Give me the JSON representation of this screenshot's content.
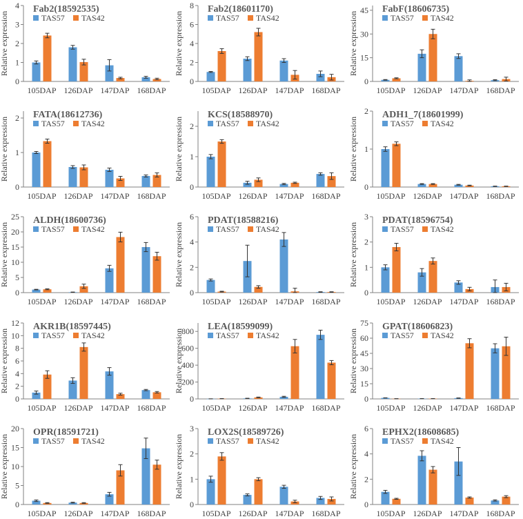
{
  "legend": [
    "TAS57",
    "TAS42"
  ],
  "colors": {
    "TAS57": "#5B9BD5",
    "TAS42": "#ED7D31",
    "axis": "#808080",
    "text": "#404040"
  },
  "ylabel": "Relative expression",
  "chart_data": [
    {
      "type": "bar",
      "title": "Fab2(18592535)",
      "categories": [
        "105DAP",
        "126DAP",
        "147DAP",
        "168DAP"
      ],
      "yticks": [
        "0",
        "1",
        "2",
        "3",
        "4"
      ],
      "ylim": [
        0,
        4
      ],
      "series": [
        {
          "name": "TAS57",
          "values": [
            1.0,
            1.8,
            0.85,
            0.22
          ],
          "err": [
            0.08,
            0.1,
            0.3,
            0.05
          ]
        },
        {
          "name": "TAS42",
          "values": [
            2.42,
            1.02,
            0.18,
            0.13
          ],
          "err": [
            0.12,
            0.15,
            0.04,
            0.04
          ]
        }
      ]
    },
    {
      "type": "bar",
      "title": "Fab2(18601170)",
      "categories": [
        "105DAP",
        "126DAP",
        "147DAP",
        "168DAP"
      ],
      "yticks": [
        "0",
        "2",
        "4",
        "6",
        "8"
      ],
      "ylim": [
        0,
        8
      ],
      "series": [
        {
          "name": "TAS57",
          "values": [
            1.0,
            2.4,
            2.2,
            0.8
          ],
          "err": [
            0.05,
            0.2,
            0.2,
            0.3
          ]
        },
        {
          "name": "TAS42",
          "values": [
            3.2,
            5.2,
            0.7,
            0.45
          ],
          "err": [
            0.25,
            0.4,
            0.45,
            0.3
          ]
        }
      ]
    },
    {
      "type": "bar",
      "title": "FabF(18606735)",
      "categories": [
        "105DAP",
        "126DAP",
        "147DAP",
        "168DAP"
      ],
      "yticks": [
        "0",
        "15",
        "30",
        "45"
      ],
      "ylim": [
        0,
        48
      ],
      "series": [
        {
          "name": "TAS57",
          "values": [
            1.0,
            17.5,
            16.0,
            0.8
          ],
          "err": [
            0.2,
            2.5,
            1.5,
            0.3
          ]
        },
        {
          "name": "TAS42",
          "values": [
            2.0,
            30.0,
            0.4,
            1.5
          ],
          "err": [
            0.3,
            3.0,
            0.6,
            1.2
          ]
        }
      ]
    },
    {
      "type": "bar",
      "title": "FATA(18612736)",
      "categories": [
        "105DAP",
        "126DAP",
        "147DAP",
        "168DAP"
      ],
      "yticks": [
        "0",
        "1",
        "2"
      ],
      "ylim": [
        0,
        2.2
      ],
      "series": [
        {
          "name": "TAS57",
          "values": [
            1.0,
            0.58,
            0.5,
            0.32
          ],
          "err": [
            0.03,
            0.04,
            0.05,
            0.03
          ]
        },
        {
          "name": "TAS42",
          "values": [
            1.33,
            0.57,
            0.25,
            0.35
          ],
          "err": [
            0.06,
            0.07,
            0.06,
            0.06
          ]
        }
      ]
    },
    {
      "type": "bar",
      "title": "KCS(18588970)",
      "categories": [
        "105DAP",
        "126DAP",
        "147DAP",
        "168DAP"
      ],
      "yticks": [
        "0",
        "1",
        "2"
      ],
      "ylim": [
        0,
        2.5
      ],
      "series": [
        {
          "name": "TAS57",
          "values": [
            1.0,
            0.14,
            0.1,
            0.43
          ],
          "err": [
            0.07,
            0.05,
            0.02,
            0.04
          ]
        },
        {
          "name": "TAS42",
          "values": [
            1.5,
            0.24,
            0.14,
            0.36
          ],
          "err": [
            0.06,
            0.06,
            0.02,
            0.11
          ]
        }
      ]
    },
    {
      "type": "bar",
      "title": "ADH1_7(18601999)",
      "categories": [
        "105DAP",
        "126DAP",
        "147DAP",
        "168DAP"
      ],
      "yticks": [
        "0",
        "1",
        "2"
      ],
      "ylim": [
        0,
        2
      ],
      "series": [
        {
          "name": "TAS57",
          "values": [
            1.0,
            0.08,
            0.06,
            0.02
          ],
          "err": [
            0.06,
            0.01,
            0.01,
            0.005
          ]
        },
        {
          "name": "TAS42",
          "values": [
            1.14,
            0.08,
            0.04,
            0.02
          ],
          "err": [
            0.05,
            0.01,
            0.01,
            0.005
          ]
        }
      ]
    },
    {
      "type": "bar",
      "title": "ALDH(18600736)",
      "categories": [
        "105DAP",
        "126DAP",
        "147DAP",
        "168DAP"
      ],
      "yticks": [
        "0",
        "5",
        "10",
        "15",
        "20",
        "25"
      ],
      "ylim": [
        0,
        25
      ],
      "series": [
        {
          "name": "TAS57",
          "values": [
            1.0,
            0.15,
            8.0,
            15.0
          ],
          "err": [
            0.1,
            0.05,
            1.0,
            1.5
          ]
        },
        {
          "name": "TAS42",
          "values": [
            1.1,
            2.1,
            18.3,
            12.0
          ],
          "err": [
            0.15,
            0.7,
            1.6,
            1.3
          ]
        }
      ]
    },
    {
      "type": "bar",
      "title": "PDAT(18588216)",
      "categories": [
        "105DAP",
        "126DAP",
        "147DAP",
        "168DAP"
      ],
      "yticks": [
        "0",
        "2",
        "4",
        "6"
      ],
      "ylim": [
        0,
        6
      ],
      "series": [
        {
          "name": "TAS57",
          "values": [
            1.0,
            2.5,
            4.2,
            0.05
          ],
          "err": [
            0.08,
            1.25,
            0.55,
            0.02
          ]
        },
        {
          "name": "TAS42",
          "values": [
            0.08,
            0.45,
            0.1,
            0.05
          ],
          "err": [
            0.03,
            0.1,
            0.25,
            0.02
          ]
        }
      ]
    },
    {
      "type": "bar",
      "title": "PDAT(18596754)",
      "categories": [
        "105DAP",
        "126DAP",
        "147DAP",
        "168DAP"
      ],
      "yticks": [
        "0",
        "1",
        "2",
        "3"
      ],
      "ylim": [
        0,
        3
      ],
      "series": [
        {
          "name": "TAS57",
          "values": [
            1.0,
            0.8,
            0.4,
            0.22
          ],
          "err": [
            0.1,
            0.15,
            0.07,
            0.28
          ]
        },
        {
          "name": "TAS42",
          "values": [
            1.8,
            1.25,
            0.14,
            0.22
          ],
          "err": [
            0.15,
            0.12,
            0.07,
            0.15
          ]
        }
      ]
    },
    {
      "type": "bar",
      "title": "AKR1B(18597445)",
      "categories": [
        "105DAP",
        "126DAP",
        "147DAP",
        "168DAP"
      ],
      "yticks": [
        "0",
        "2",
        "4",
        "6",
        "8",
        "10",
        "12"
      ],
      "ylim": [
        0,
        12
      ],
      "series": [
        {
          "name": "TAS57",
          "values": [
            1.0,
            2.9,
            4.35,
            1.4
          ],
          "err": [
            0.25,
            0.45,
            0.6,
            0.1
          ]
        },
        {
          "name": "TAS42",
          "values": [
            3.85,
            8.2,
            0.75,
            1.05
          ],
          "err": [
            0.6,
            0.65,
            0.15,
            0.12
          ]
        }
      ]
    },
    {
      "type": "bar",
      "title": "LEA(18599099)",
      "categories": [
        "105DAP",
        "126DAP",
        "147DAP",
        "168DAP"
      ],
      "yticks": [
        "0",
        "200",
        "400",
        "600",
        "800"
      ],
      "ylim": [
        0,
        900
      ],
      "series": [
        {
          "name": "TAS57",
          "values": [
            1.0,
            6.0,
            25.0,
            760.0
          ],
          "err": [
            0.5,
            2.0,
            6.0,
            55.0
          ]
        },
        {
          "name": "TAS42",
          "values": [
            3.0,
            18.0,
            625.0,
            430.0
          ],
          "err": [
            1.0,
            4.0,
            80.0,
            25.0
          ]
        }
      ]
    },
    {
      "type": "bar",
      "title": "GPAT(18606823)",
      "categories": [
        "105DAP",
        "126DAP",
        "147DAP",
        "168DAP"
      ],
      "yticks": [
        "0",
        "15",
        "30",
        "45",
        "60",
        "75"
      ],
      "ylim": [
        0,
        75
      ],
      "series": [
        {
          "name": "TAS57",
          "values": [
            1.0,
            0.3,
            0.8,
            50.0
          ],
          "err": [
            0.1,
            0.05,
            0.2,
            4.5
          ]
        },
        {
          "name": "TAS42",
          "values": [
            0.2,
            0.3,
            55.0,
            52.0
          ],
          "err": [
            0.05,
            0.05,
            4.5,
            9.0
          ]
        }
      ]
    },
    {
      "type": "bar",
      "title": "OPR(18591721)",
      "categories": [
        "105DAP",
        "126DAP",
        "147DAP",
        "168DAP"
      ],
      "yticks": [
        "0",
        "5",
        "10",
        "15",
        "20"
      ],
      "ylim": [
        0,
        20
      ],
      "series": [
        {
          "name": "TAS57",
          "values": [
            1.0,
            0.5,
            2.7,
            14.8
          ],
          "err": [
            0.2,
            0.1,
            0.5,
            2.7
          ]
        },
        {
          "name": "TAS42",
          "values": [
            0.4,
            0.4,
            9.0,
            10.5
          ],
          "err": [
            0.1,
            0.1,
            1.5,
            1.2
          ]
        }
      ]
    },
    {
      "type": "bar",
      "title": "LOX2S(18589726)",
      "categories": [
        "105DAP",
        "126DAP",
        "147DAP",
        "168DAP"
      ],
      "yticks": [
        "0",
        "1",
        "2",
        "3"
      ],
      "ylim": [
        0,
        3
      ],
      "series": [
        {
          "name": "TAS57",
          "values": [
            1.0,
            0.38,
            0.7,
            0.26
          ],
          "err": [
            0.12,
            0.04,
            0.06,
            0.06
          ]
        },
        {
          "name": "TAS42",
          "values": [
            1.9,
            1.0,
            0.12,
            0.22
          ],
          "err": [
            0.15,
            0.06,
            0.05,
            0.08
          ]
        }
      ]
    },
    {
      "type": "bar",
      "title": "EPHX2(18608685)",
      "categories": [
        "105DAP",
        "126DAP",
        "147DAP",
        "168DAP"
      ],
      "yticks": [
        "0",
        "2",
        "4",
        "6"
      ],
      "ylim": [
        0,
        6
      ],
      "series": [
        {
          "name": "TAS57",
          "values": [
            1.0,
            3.85,
            3.4,
            0.32
          ],
          "err": [
            0.12,
            0.4,
            1.1,
            0.05
          ]
        },
        {
          "name": "TAS42",
          "values": [
            0.45,
            2.75,
            0.55,
            0.62
          ],
          "err": [
            0.04,
            0.25,
            0.05,
            0.08
          ]
        }
      ]
    }
  ]
}
